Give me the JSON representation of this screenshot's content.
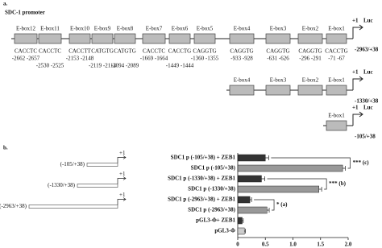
{
  "panel_a": {
    "label": "a.",
    "title": "SDC-1 promoter",
    "tss": "+1",
    "reporter": "Luc",
    "boxes": [
      {
        "name": "E-box12",
        "seq": "CACCTC",
        "pos": "-2662 -2657"
      },
      {
        "name": "E-box11",
        "seq": "CACCTC",
        "pos": "-2530 -2525"
      },
      {
        "name": "E-box10",
        "seq": "CACCTT",
        "pos": "-2153 -2148"
      },
      {
        "name": "E-box9",
        "seq": "CATGTG",
        "pos": "-2119 -2114"
      },
      {
        "name": "E-box8",
        "seq": "CATGTG",
        "pos": "-2094 -2089"
      },
      {
        "name": "E-box7",
        "seq": "CACCTC",
        "pos": "-1669 -1664"
      },
      {
        "name": "E-box6",
        "seq": "CACCTG",
        "pos": "-1449 -1444"
      },
      {
        "name": "E-box5",
        "seq": "CAGGTG",
        "pos": "-1360 -1355"
      },
      {
        "name": "E-box4",
        "seq": "CAGGTG",
        "pos": "-933 -928"
      },
      {
        "name": "E-box3",
        "seq": "CAGGTG",
        "pos": "-631 -626"
      },
      {
        "name": "E-box2",
        "seq": "CAGGTG",
        "pos": "-296 -291"
      },
      {
        "name": "E-box1",
        "seq": "CACCTG",
        "pos": "-71 -67"
      }
    ],
    "constructs": [
      {
        "range": "-2963/+38",
        "boxes": [
          "E-box12",
          "E-box11",
          "E-box10",
          "E-box9",
          "E-box8",
          "E-box7",
          "E-box6",
          "E-box5",
          "E-box4",
          "E-box3",
          "E-box2",
          "E-box1"
        ]
      },
      {
        "range": "-1330/+38",
        "boxes": [
          "E-box4",
          "E-box3",
          "E-box2",
          "E-box1"
        ]
      },
      {
        "range": "-105/+38",
        "boxes": [
          "E-box1"
        ]
      }
    ]
  },
  "chart_data": {
    "type": "bar",
    "orientation": "horizontal",
    "panel_label": "b.",
    "categories": [
      "SDC1 p (-105/+38) + ZEB1",
      "SDC1 p (-105/+38)",
      "SDC1 p (-1330/+38) + ZEB1",
      "SDC1 p (-1330/+38)",
      "SDC1 p (-2963/+38) + ZEB1",
      "SDC1 p (-2963/+38)",
      "pGL3-Φ+ ZEB1",
      "pGL3-Φ"
    ],
    "values": [
      0.5,
      1.9,
      0.43,
      1.47,
      0.22,
      0.53,
      0.08,
      0.12
    ],
    "errors": [
      0.06,
      0.05,
      0.06,
      0.05,
      0.03,
      0.04,
      0.02,
      0.02
    ],
    "colors": [
      "#333333",
      "#999999",
      "#333333",
      "#999999",
      "#333333",
      "#999999",
      "#333333",
      "#cccccc"
    ],
    "xlim": [
      0,
      2
    ],
    "xticks": [
      0,
      0.5,
      {
        "value": 1,
        "label": "1.0"
      },
      1.5,
      {
        "value": 2,
        "label": "2.0"
      }
    ],
    "significance": [
      {
        "label": "*** (c)",
        "rows": [
          0,
          1
        ]
      },
      {
        "label": "*** (b)",
        "rows": [
          2,
          3
        ]
      },
      {
        "label": "* (a)",
        "rows": [
          4,
          5
        ]
      }
    ],
    "schematics": [
      {
        "label": "(-105/+38)",
        "tss": "+1"
      },
      {
        "label": "(-1330/+38)",
        "tss": "+1"
      },
      {
        "label": "(-2963/+38)",
        "tss": "+1"
      }
    ]
  }
}
